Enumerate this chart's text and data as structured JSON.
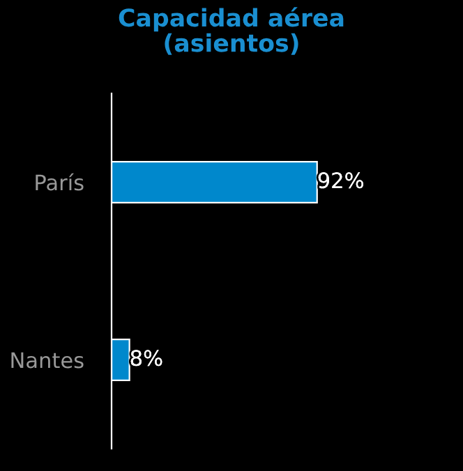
{
  "chart_data": {
    "type": "bar",
    "orientation": "horizontal",
    "title": "Capacidad aérea\n(asientos)",
    "categories": [
      "París",
      "Nantes"
    ],
    "values": [
      92,
      8
    ],
    "value_labels": [
      "92%",
      "8%"
    ],
    "color": "#0088cc",
    "grid": false,
    "legend": false
  }
}
